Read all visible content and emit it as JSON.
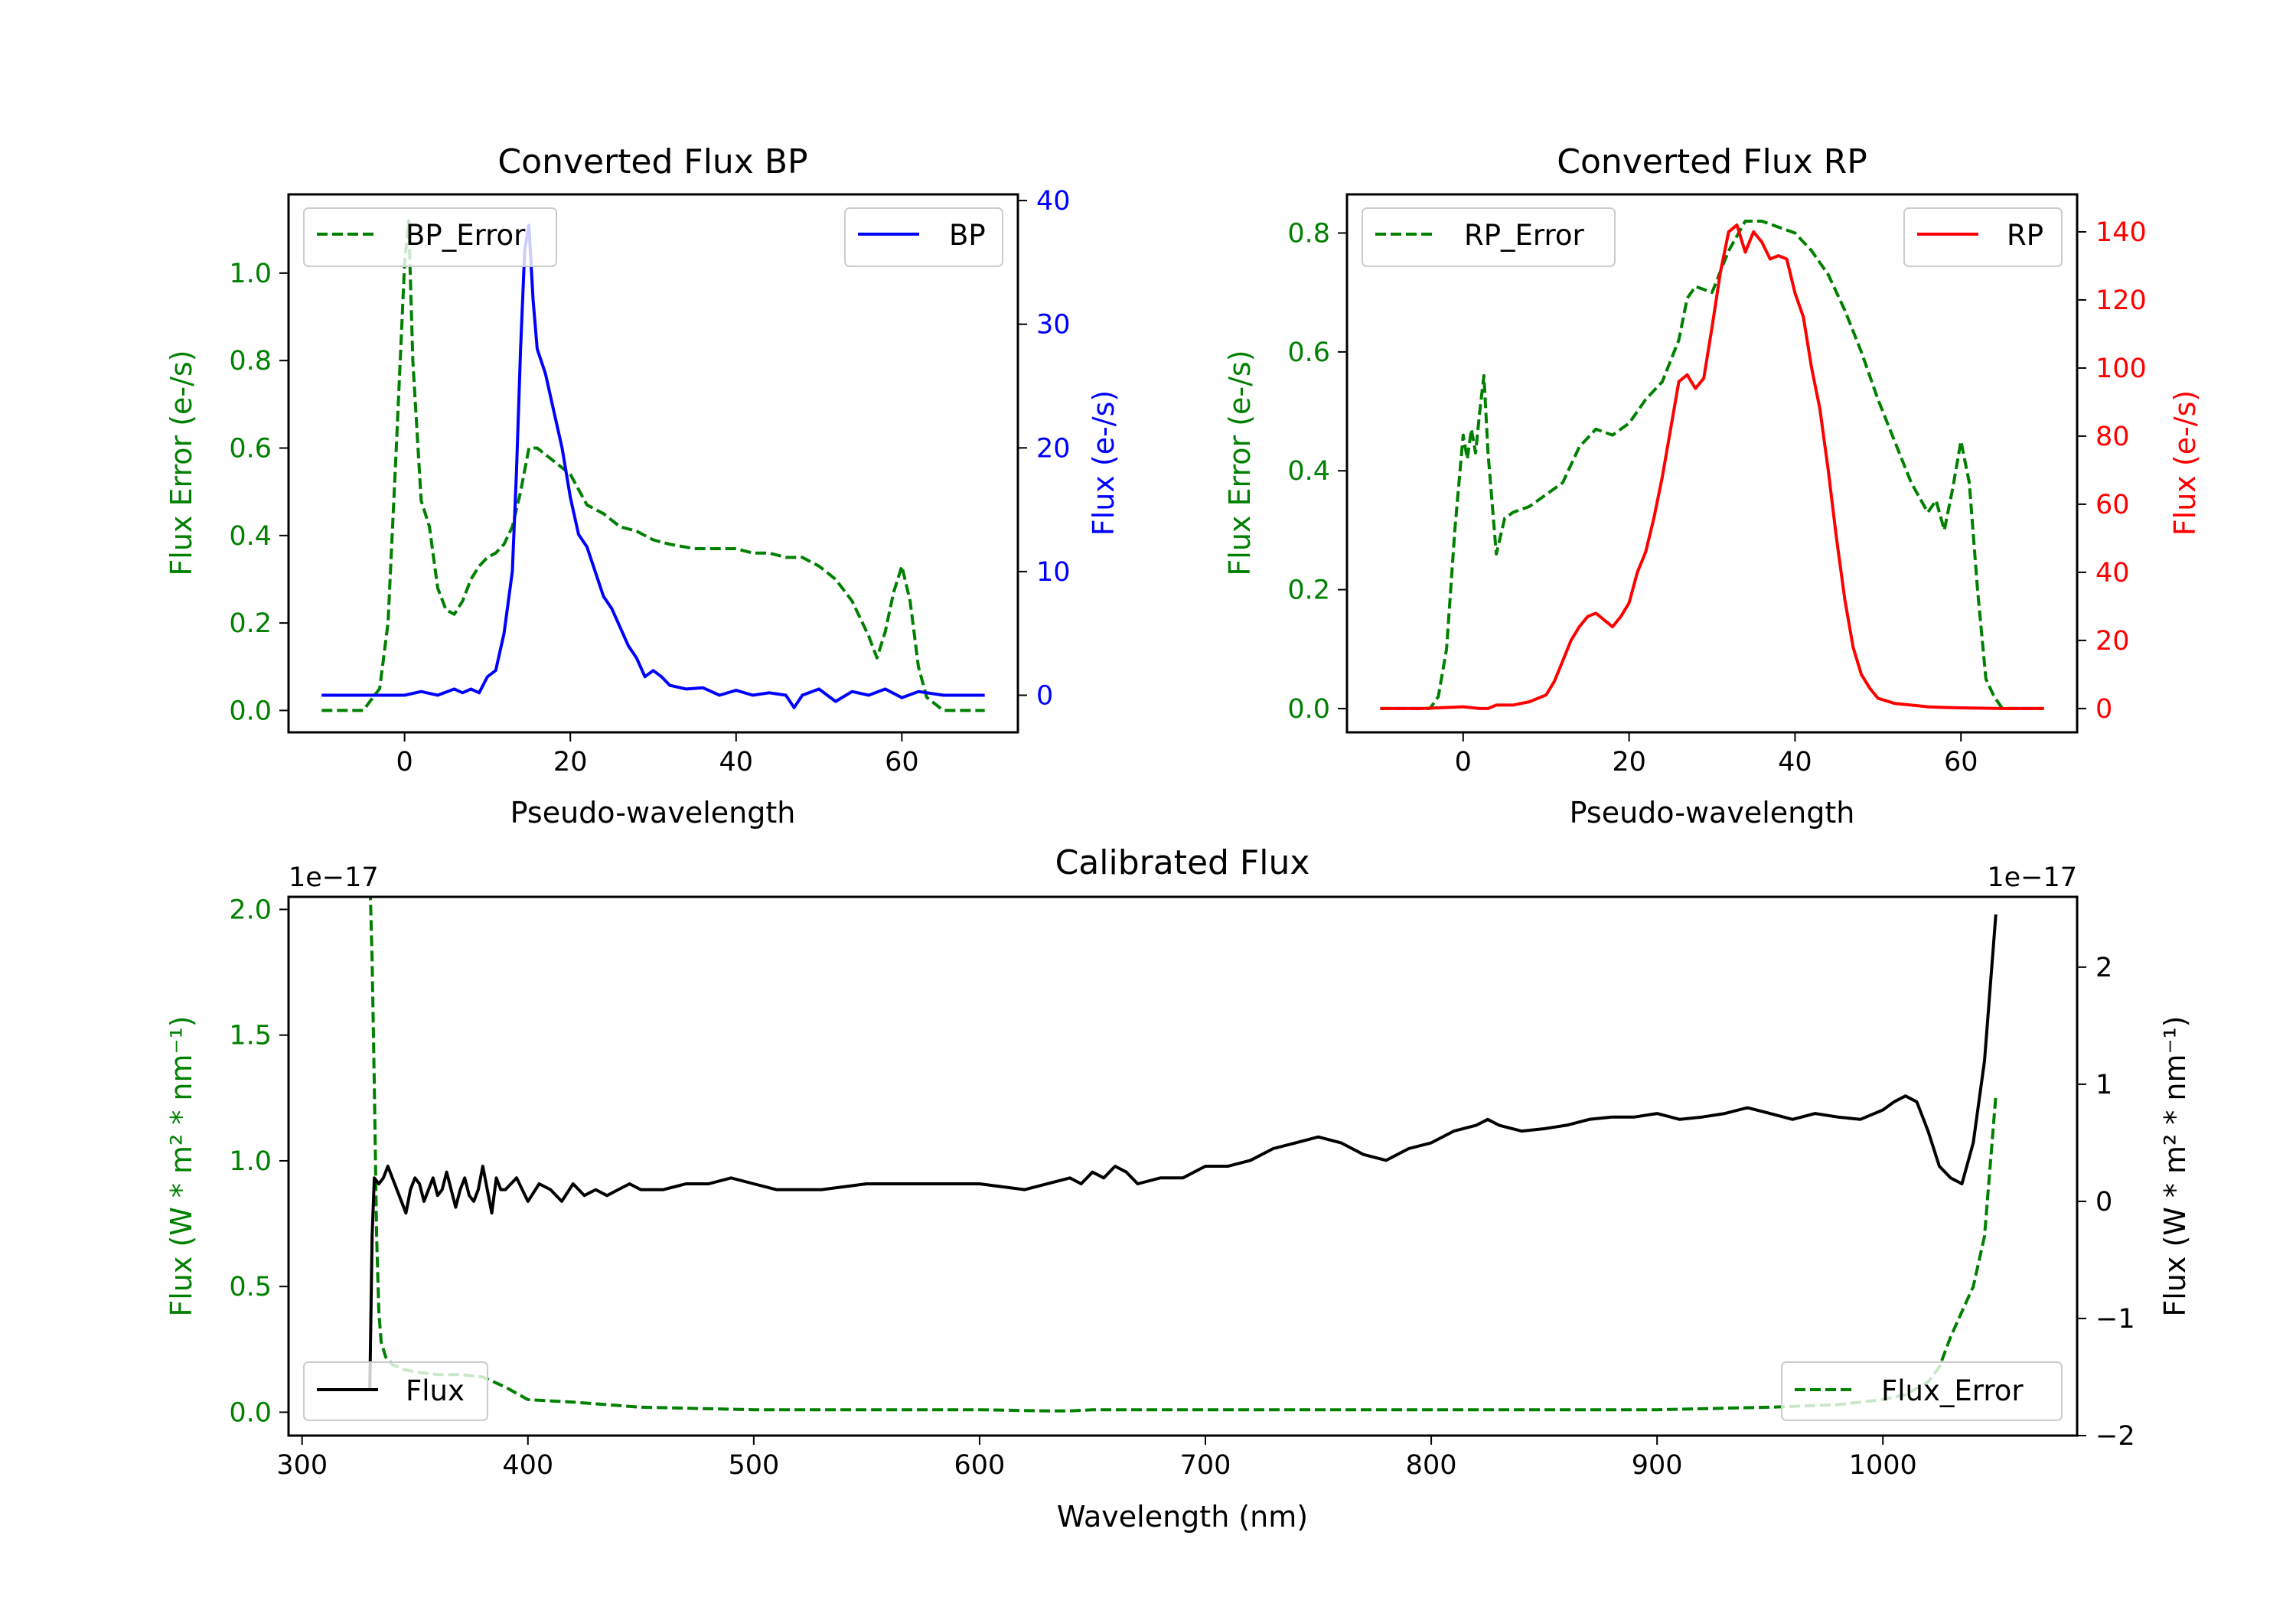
{
  "colors": {
    "green": "#008000",
    "blue": "#0000ff",
    "red": "#ff0000",
    "black": "#000000"
  },
  "chart_data": [
    {
      "type": "line",
      "title": "Converted Flux BP",
      "xlabel": "Pseudo-wavelength",
      "ylabel_left": "Flux Error (e-/s)",
      "ylabel_right": "Flux (e-/s)",
      "xlim": [
        -14,
        74
      ],
      "ylim_left": [
        -0.05,
        1.18
      ],
      "ylim_right": [
        -3,
        40.5
      ],
      "xticks": [
        "0",
        "20",
        "40",
        "60"
      ],
      "xtick_values": [
        0,
        20,
        40,
        60
      ],
      "yticks_left": [
        "0.0",
        "0.2",
        "0.4",
        "0.6",
        "0.8",
        "1.0"
      ],
      "ytick_values_left": [
        0,
        0.2,
        0.4,
        0.6,
        0.8,
        1.0
      ],
      "yticks_right": [
        "0",
        "10",
        "20",
        "30",
        "40"
      ],
      "ytick_values_right": [
        0,
        10,
        20,
        30,
        40
      ],
      "legend_left_position": "upper-left",
      "legend_right_position": "upper-right",
      "series": [
        {
          "name": "BP_Error",
          "axis": "left",
          "color": "green",
          "style": "dashed",
          "x": [
            -10,
            -5,
            -3,
            -2,
            -1,
            0,
            0.5,
            1,
            2,
            3,
            4,
            5,
            6,
            7,
            8,
            9,
            10,
            11,
            12,
            13,
            14,
            15,
            16,
            18,
            20,
            22,
            24,
            26,
            28,
            30,
            32,
            35,
            38,
            40,
            42,
            44,
            46,
            48,
            50,
            52,
            54,
            56,
            57,
            58,
            59,
            60,
            61,
            62,
            63,
            65,
            67,
            70
          ],
          "y": [
            0,
            0,
            0.05,
            0.2,
            0.6,
            1.02,
            1.12,
            0.8,
            0.48,
            0.42,
            0.28,
            0.23,
            0.22,
            0.25,
            0.3,
            0.33,
            0.35,
            0.36,
            0.38,
            0.42,
            0.5,
            0.6,
            0.6,
            0.57,
            0.54,
            0.47,
            0.45,
            0.42,
            0.41,
            0.39,
            0.38,
            0.37,
            0.37,
            0.37,
            0.36,
            0.36,
            0.35,
            0.35,
            0.33,
            0.3,
            0.25,
            0.17,
            0.12,
            0.18,
            0.27,
            0.33,
            0.25,
            0.1,
            0.03,
            0,
            0,
            0
          ]
        },
        {
          "name": "BP",
          "axis": "right",
          "color": "blue",
          "style": "solid",
          "x": [
            -10,
            -5,
            0,
            2,
            4,
            6,
            7,
            8,
            9,
            10,
            11,
            12,
            13,
            13.5,
            14,
            14.5,
            15,
            15.5,
            16,
            17,
            18,
            19,
            20,
            21,
            22,
            23,
            24,
            25,
            26,
            27,
            28,
            29,
            30,
            31,
            32,
            34,
            36,
            38,
            40,
            42,
            44,
            46,
            47,
            48,
            50,
            52,
            54,
            56,
            58,
            60,
            62,
            65,
            70
          ],
          "y": [
            0,
            0,
            0,
            0.3,
            0,
            0.5,
            0.2,
            0.5,
            0.2,
            1.5,
            2,
            5,
            10,
            18,
            28,
            36,
            38,
            32,
            28,
            26,
            23,
            20,
            16,
            13,
            12,
            10,
            8,
            7,
            5.5,
            4,
            3,
            1.5,
            2,
            1.5,
            0.8,
            0.5,
            0.6,
            0,
            0.4,
            0,
            0.2,
            0,
            -1,
            0,
            0.5,
            -0.5,
            0.3,
            0,
            0.5,
            -0.2,
            0.3,
            0,
            0
          ]
        }
      ]
    },
    {
      "type": "line",
      "title": "Converted Flux RP",
      "xlabel": "Pseudo-wavelength",
      "ylabel_left": "Flux Error (e-/s)",
      "ylabel_right": "Flux (e-/s)",
      "xlim": [
        -14,
        74
      ],
      "ylim_left": [
        -0.04,
        0.865
      ],
      "ylim_right": [
        -7,
        151
      ],
      "xticks": [
        "0",
        "20",
        "40",
        "60"
      ],
      "xtick_values": [
        0,
        20,
        40,
        60
      ],
      "yticks_left": [
        "0.0",
        "0.2",
        "0.4",
        "0.6",
        "0.8"
      ],
      "ytick_values_left": [
        0,
        0.2,
        0.4,
        0.6,
        0.8
      ],
      "yticks_right": [
        "0",
        "20",
        "40",
        "60",
        "80",
        "100",
        "120",
        "140"
      ],
      "ytick_values_right": [
        0,
        20,
        40,
        60,
        80,
        100,
        120,
        140
      ],
      "legend_left_position": "upper-left",
      "legend_right_position": "upper-right",
      "series": [
        {
          "name": "RP_Error",
          "axis": "left",
          "color": "green",
          "style": "dashed",
          "x": [
            -10,
            -5,
            -4,
            -3,
            -2,
            -1,
            0,
            0.5,
            1,
            1.5,
            2,
            2.5,
            3,
            4,
            5,
            6,
            8,
            10,
            12,
            14,
            16,
            18,
            20,
            22,
            24,
            26,
            27,
            28,
            30,
            32,
            34,
            36,
            38,
            40,
            42,
            44,
            46,
            48,
            50,
            52,
            54,
            56,
            57,
            58,
            59,
            60,
            61,
            62,
            63,
            64,
            65,
            67,
            70
          ],
          "y": [
            0,
            0,
            0,
            0.02,
            0.1,
            0.3,
            0.46,
            0.42,
            0.47,
            0.43,
            0.5,
            0.56,
            0.43,
            0.26,
            0.32,
            0.33,
            0.34,
            0.36,
            0.38,
            0.44,
            0.47,
            0.46,
            0.48,
            0.52,
            0.55,
            0.62,
            0.69,
            0.71,
            0.7,
            0.77,
            0.82,
            0.82,
            0.81,
            0.8,
            0.77,
            0.73,
            0.67,
            0.6,
            0.52,
            0.45,
            0.38,
            0.33,
            0.35,
            0.3,
            0.37,
            0.45,
            0.38,
            0.2,
            0.05,
            0.02,
            0,
            0,
            0
          ]
        },
        {
          "name": "RP",
          "axis": "right",
          "color": "red",
          "style": "solid",
          "x": [
            -10,
            -5,
            0,
            2,
            3,
            4,
            5,
            6,
            8,
            10,
            11,
            12,
            13,
            14,
            15,
            16,
            17,
            18,
            19,
            20,
            21,
            22,
            23,
            24,
            25,
            26,
            27,
            28,
            29,
            30,
            31,
            32,
            33,
            34,
            35,
            36,
            37,
            38,
            39,
            40,
            41,
            42,
            43,
            44,
            45,
            46,
            47,
            48,
            49,
            50,
            52,
            54,
            56,
            58,
            60,
            65,
            70
          ],
          "y": [
            0,
            0,
            0.5,
            0,
            0,
            1,
            1,
            1,
            2,
            4,
            8,
            14,
            20,
            24,
            27,
            28,
            26,
            24,
            27,
            31,
            40,
            46,
            56,
            68,
            82,
            96,
            98,
            94,
            97,
            112,
            128,
            140,
            142,
            134,
            140,
            137,
            132,
            133,
            132,
            122,
            115,
            100,
            88,
            70,
            50,
            32,
            18,
            10,
            6,
            3,
            1.5,
            1,
            0.5,
            0.3,
            0.2,
            0,
            0
          ]
        }
      ]
    },
    {
      "type": "line",
      "title": "Calibrated Flux",
      "xlabel": "Wavelength (nm)",
      "ylabel_left": "Flux (W * m² * nm⁻¹)",
      "ylabel_right": "Flux (W * m² * nm⁻¹)",
      "offset_left": "1e−17",
      "offset_right": "1e−17",
      "xlim": [
        294,
        1086
      ],
      "ylim_left": [
        -0.093,
        2.05
      ],
      "ylim_right": [
        -2.0,
        2.6
      ],
      "xticks": [
        "300",
        "400",
        "500",
        "600",
        "700",
        "800",
        "900",
        "1000"
      ],
      "xtick_values": [
        300,
        400,
        500,
        600,
        700,
        800,
        900,
        1000
      ],
      "yticks_left": [
        "0.0",
        "0.5",
        "1.0",
        "1.5",
        "2.0"
      ],
      "ytick_values_left": [
        0,
        0.5,
        1.0,
        1.5,
        2.0
      ],
      "yticks_right": [
        "−2",
        "−1",
        "0",
        "1",
        "2"
      ],
      "ytick_values_right": [
        -2,
        -1,
        0,
        1,
        2
      ],
      "legend_left_position": "lower-left",
      "legend_right_position": "lower-right",
      "series": [
        {
          "name": "Flux_Error",
          "axis": "left",
          "color": "green",
          "style": "dashed",
          "x": [
            330,
            331,
            332,
            333,
            334,
            335,
            337,
            340,
            345,
            350,
            360,
            370,
            380,
            390,
            400,
            420,
            450,
            500,
            550,
            600,
            630,
            640,
            650,
            700,
            800,
            900,
            950,
            980,
            1000,
            1010,
            1020,
            1025,
            1030,
            1035,
            1040,
            1045,
            1050
          ],
          "y": [
            2.14,
            1.8,
            1.3,
            0.7,
            0.4,
            0.28,
            0.22,
            0.19,
            0.17,
            0.16,
            0.15,
            0.15,
            0.14,
            0.1,
            0.05,
            0.04,
            0.02,
            0.01,
            0.01,
            0.01,
            0.005,
            0.005,
            0.01,
            0.01,
            0.01,
            0.01,
            0.02,
            0.03,
            0.05,
            0.07,
            0.12,
            0.18,
            0.3,
            0.4,
            0.5,
            0.7,
            1.26
          ]
        },
        {
          "name": "Flux",
          "axis": "right",
          "color": "black",
          "style": "solid",
          "x": [
            330,
            331,
            332,
            334,
            336,
            338,
            340,
            342,
            344,
            346,
            348,
            350,
            352,
            354,
            356,
            358,
            360,
            362,
            364,
            366,
            368,
            370,
            372,
            374,
            376,
            378,
            380,
            382,
            384,
            386,
            388,
            390,
            395,
            400,
            405,
            410,
            415,
            420,
            425,
            430,
            435,
            440,
            445,
            450,
            460,
            470,
            480,
            490,
            500,
            510,
            520,
            530,
            550,
            570,
            590,
            600,
            620,
            640,
            645,
            650,
            655,
            660,
            665,
            670,
            680,
            690,
            700,
            710,
            720,
            730,
            740,
            750,
            760,
            770,
            780,
            790,
            800,
            810,
            820,
            825,
            830,
            840,
            850,
            860,
            870,
            880,
            890,
            900,
            910,
            920,
            930,
            940,
            950,
            960,
            970,
            980,
            990,
            1000,
            1005,
            1010,
            1015,
            1020,
            1025,
            1030,
            1035,
            1040,
            1045,
            1050
          ],
          "y": [
            -1.6,
            -0.3,
            0.2,
            0.15,
            0.2,
            0.3,
            0.2,
            0.1,
            0,
            -0.1,
            0.1,
            0.2,
            0.15,
            0,
            0.1,
            0.2,
            0.05,
            0.1,
            0.25,
            0.1,
            -0.05,
            0.1,
            0.2,
            0.05,
            0,
            0.1,
            0.3,
            0.1,
            -0.1,
            0.2,
            0.1,
            0.1,
            0.2,
            0,
            0.15,
            0.1,
            0,
            0.15,
            0.05,
            0.1,
            0.05,
            0.1,
            0.15,
            0.1,
            0.1,
            0.15,
            0.15,
            0.2,
            0.15,
            0.1,
            0.1,
            0.1,
            0.15,
            0.15,
            0.15,
            0.15,
            0.1,
            0.2,
            0.15,
            0.25,
            0.2,
            0.3,
            0.25,
            0.15,
            0.2,
            0.2,
            0.3,
            0.3,
            0.35,
            0.45,
            0.5,
            0.55,
            0.5,
            0.4,
            0.35,
            0.45,
            0.5,
            0.6,
            0.65,
            0.7,
            0.65,
            0.6,
            0.62,
            0.65,
            0.7,
            0.72,
            0.72,
            0.75,
            0.7,
            0.72,
            0.75,
            0.8,
            0.75,
            0.7,
            0.75,
            0.72,
            0.7,
            0.78,
            0.85,
            0.9,
            0.85,
            0.6,
            0.3,
            0.2,
            0.15,
            0.5,
            1.2,
            2.45
          ]
        }
      ]
    }
  ]
}
